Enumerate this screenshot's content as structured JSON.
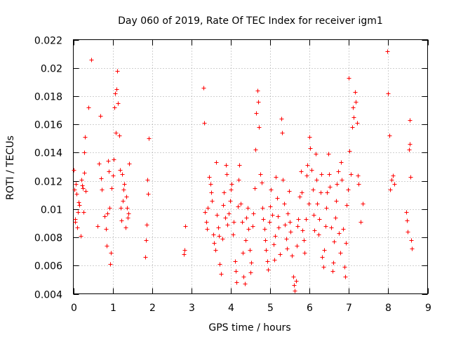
{
  "chart_data": {
    "type": "scatter",
    "title": "Day 060 of 2019, Rate Of TEC Index for receiver igm1",
    "xlabel": "GPS time / hours",
    "ylabel": "ROTI / TECUs",
    "xlim": [
      0,
      9
    ],
    "ylim": [
      0.004,
      0.022
    ],
    "x_ticks": [
      0,
      1,
      2,
      3,
      4,
      5,
      6,
      7,
      8,
      9
    ],
    "x_tick_labels": [
      "0",
      "1",
      "2",
      "3",
      "4",
      "5",
      "6",
      "7",
      "8",
      "9"
    ],
    "y_ticks": [
      0.004,
      0.006,
      0.008,
      0.01,
      0.012,
      0.014,
      0.016,
      0.018,
      0.02,
      0.022
    ],
    "y_tick_labels": [
      "0.004",
      "0.006",
      "0.008",
      "0.01",
      "0.012",
      "0.014",
      "0.016",
      "0.018",
      "0.02",
      "0.022"
    ],
    "grid": true,
    "marker": "+",
    "marker_color": "#ff0000",
    "series": [
      {
        "name": "ROTI",
        "points": [
          [
            0.0,
            0.0128
          ],
          [
            0.02,
            0.0114
          ],
          [
            0.04,
            0.0093
          ],
          [
            0.05,
            0.0091
          ],
          [
            0.06,
            0.0118
          ],
          [
            0.08,
            0.0111
          ],
          [
            0.1,
            0.0087
          ],
          [
            0.12,
            0.0098
          ],
          [
            0.14,
            0.0105
          ],
          [
            0.16,
            0.0103
          ],
          [
            0.18,
            0.0081
          ],
          [
            0.2,
            0.0121
          ],
          [
            0.22,
            0.0117
          ],
          [
            0.24,
            0.0115
          ],
          [
            0.26,
            0.0098
          ],
          [
            0.27,
            0.0126
          ],
          [
            0.28,
            0.014
          ],
          [
            0.3,
            0.0151
          ],
          [
            0.32,
            0.0113
          ],
          [
            0.38,
            0.0172
          ],
          [
            0.45,
            0.0206
          ],
          [
            0.62,
            0.0088
          ],
          [
            0.65,
            0.0132
          ],
          [
            0.68,
            0.0166
          ],
          [
            0.7,
            0.0122
          ],
          [
            0.72,
            0.0114
          ],
          [
            0.8,
            0.0095
          ],
          [
            0.82,
            0.0086
          ],
          [
            0.84,
            0.0074
          ],
          [
            0.86,
            0.0097
          ],
          [
            0.88,
            0.0134
          ],
          [
            0.9,
            0.0127
          ],
          [
            0.92,
            0.0101
          ],
          [
            0.94,
            0.0061
          ],
          [
            0.96,
            0.0069
          ],
          [
            0.98,
            0.0115
          ],
          [
            1.0,
            0.0124
          ],
          [
            1.02,
            0.0135
          ],
          [
            1.04,
            0.0172
          ],
          [
            1.06,
            0.0182
          ],
          [
            1.08,
            0.0154
          ],
          [
            1.1,
            0.0185
          ],
          [
            1.12,
            0.0198
          ],
          [
            1.14,
            0.0175
          ],
          [
            1.16,
            0.0152
          ],
          [
            1.18,
            0.0128
          ],
          [
            1.2,
            0.0101
          ],
          [
            1.22,
            0.0092
          ],
          [
            1.24,
            0.0125
          ],
          [
            1.26,
            0.0106
          ],
          [
            1.28,
            0.0114
          ],
          [
            1.3,
            0.0118
          ],
          [
            1.32,
            0.0087
          ],
          [
            1.34,
            0.0109
          ],
          [
            1.36,
            0.0101
          ],
          [
            1.38,
            0.0094
          ],
          [
            1.4,
            0.0097
          ],
          [
            1.42,
            0.0132
          ],
          [
            1.82,
            0.0066
          ],
          [
            1.84,
            0.0078
          ],
          [
            1.86,
            0.0089
          ],
          [
            1.88,
            0.0121
          ],
          [
            1.9,
            0.0111
          ],
          [
            1.92,
            0.015
          ],
          [
            2.8,
            0.0068
          ],
          [
            2.82,
            0.0071
          ],
          [
            2.85,
            0.0088
          ],
          [
            3.3,
            0.0186
          ],
          [
            3.32,
            0.0161
          ],
          [
            3.35,
            0.0098
          ],
          [
            3.38,
            0.0091
          ],
          [
            3.4,
            0.0086
          ],
          [
            3.42,
            0.0101
          ],
          [
            3.45,
            0.0123
          ],
          [
            3.48,
            0.0118
          ],
          [
            3.5,
            0.0112
          ],
          [
            3.52,
            0.0106
          ],
          [
            3.55,
            0.0082
          ],
          [
            3.58,
            0.0076
          ],
          [
            3.6,
            0.0071
          ],
          [
            3.62,
            0.0133
          ],
          [
            3.65,
            0.0096
          ],
          [
            3.68,
            0.0087
          ],
          [
            3.7,
            0.0081
          ],
          [
            3.72,
            0.0061
          ],
          [
            3.75,
            0.0054
          ],
          [
            3.78,
            0.0079
          ],
          [
            3.8,
            0.0103
          ],
          [
            3.82,
            0.0112
          ],
          [
            3.85,
            0.0094
          ],
          [
            3.88,
            0.0131
          ],
          [
            3.9,
            0.0125
          ],
          [
            3.92,
            0.0089
          ],
          [
            3.95,
            0.0097
          ],
          [
            3.98,
            0.0106
          ],
          [
            4.0,
            0.0114
          ],
          [
            4.02,
            0.0118
          ],
          [
            4.05,
            0.0082
          ],
          [
            4.08,
            0.0091
          ],
          [
            4.1,
            0.0063
          ],
          [
            4.12,
            0.0056
          ],
          [
            4.15,
            0.0048
          ],
          [
            4.18,
            0.0102
          ],
          [
            4.2,
            0.0121
          ],
          [
            4.22,
            0.0131
          ],
          [
            4.25,
            0.0104
          ],
          [
            4.28,
            0.0091
          ],
          [
            4.3,
            0.0069
          ],
          [
            4.32,
            0.0052
          ],
          [
            4.35,
            0.0047
          ],
          [
            4.38,
            0.0078
          ],
          [
            4.4,
            0.0094
          ],
          [
            4.42,
            0.0101
          ],
          [
            4.45,
            0.0086
          ],
          [
            4.48,
            0.0071
          ],
          [
            4.5,
            0.0055
          ],
          [
            4.52,
            0.0062
          ],
          [
            4.55,
            0.0088
          ],
          [
            4.58,
            0.0097
          ],
          [
            4.6,
            0.0115
          ],
          [
            4.62,
            0.0142
          ],
          [
            4.65,
            0.0168
          ],
          [
            4.68,
            0.0184
          ],
          [
            4.7,
            0.0176
          ],
          [
            4.72,
            0.0158
          ],
          [
            4.75,
            0.0125
          ],
          [
            4.78,
            0.0119
          ],
          [
            4.8,
            0.0101
          ],
          [
            4.82,
            0.0093
          ],
          [
            4.85,
            0.0086
          ],
          [
            4.88,
            0.0078
          ],
          [
            4.9,
            0.0071
          ],
          [
            4.92,
            0.0063
          ],
          [
            4.95,
            0.0057
          ],
          [
            4.98,
            0.0091
          ],
          [
            5.0,
            0.0102
          ],
          [
            5.02,
            0.0114
          ],
          [
            5.05,
            0.0096
          ],
          [
            5.08,
            0.0075
          ],
          [
            5.1,
            0.0064
          ],
          [
            5.12,
            0.0081
          ],
          [
            5.15,
            0.0123
          ],
          [
            5.18,
            0.0108
          ],
          [
            5.2,
            0.0095
          ],
          [
            5.22,
            0.0087
          ],
          [
            5.25,
            0.0068
          ],
          [
            5.28,
            0.0164
          ],
          [
            5.3,
            0.0154
          ],
          [
            5.32,
            0.0121
          ],
          [
            5.35,
            0.0104
          ],
          [
            5.38,
            0.0089
          ],
          [
            5.4,
            0.0079
          ],
          [
            5.42,
            0.0072
          ],
          [
            5.45,
            0.0097
          ],
          [
            5.48,
            0.0113
          ],
          [
            5.5,
            0.0091
          ],
          [
            5.52,
            0.0084
          ],
          [
            5.55,
            0.0067
          ],
          [
            5.58,
            0.0052
          ],
          [
            5.6,
            0.0046
          ],
          [
            5.62,
            0.0042
          ],
          [
            5.65,
            0.0049
          ],
          [
            5.68,
            0.0074
          ],
          [
            5.7,
            0.0088
          ],
          [
            5.72,
            0.0093
          ],
          [
            5.75,
            0.0109
          ],
          [
            5.78,
            0.0127
          ],
          [
            5.8,
            0.0112
          ],
          [
            5.82,
            0.0085
          ],
          [
            5.85,
            0.0078
          ],
          [
            5.88,
            0.0069
          ],
          [
            5.9,
            0.0093
          ],
          [
            5.92,
            0.0124
          ],
          [
            5.95,
            0.0131
          ],
          [
            5.98,
            0.0104
          ],
          [
            6.0,
            0.0151
          ],
          [
            6.02,
            0.0143
          ],
          [
            6.05,
            0.0128
          ],
          [
            6.08,
            0.0114
          ],
          [
            6.1,
            0.0096
          ],
          [
            6.12,
            0.0085
          ],
          [
            6.15,
            0.0139
          ],
          [
            6.18,
            0.0121
          ],
          [
            6.2,
            0.0104
          ],
          [
            6.22,
            0.0082
          ],
          [
            6.25,
            0.0093
          ],
          [
            6.28,
            0.0112
          ],
          [
            6.3,
            0.0125
          ],
          [
            6.32,
            0.0066
          ],
          [
            6.35,
            0.0059
          ],
          [
            6.38,
            0.0071
          ],
          [
            6.4,
            0.0088
          ],
          [
            6.42,
            0.0101
          ],
          [
            6.45,
            0.0112
          ],
          [
            6.48,
            0.0139
          ],
          [
            6.5,
            0.0125
          ],
          [
            6.52,
            0.0116
          ],
          [
            6.55,
            0.0087
          ],
          [
            6.58,
            0.0056
          ],
          [
            6.6,
            0.0062
          ],
          [
            6.62,
            0.0077
          ],
          [
            6.65,
            0.0094
          ],
          [
            6.68,
            0.0106
          ],
          [
            6.7,
            0.0118
          ],
          [
            6.72,
            0.0127
          ],
          [
            6.75,
            0.0083
          ],
          [
            6.78,
            0.0069
          ],
          [
            6.8,
            0.0133
          ],
          [
            6.82,
            0.0121
          ],
          [
            6.85,
            0.0086
          ],
          [
            6.88,
            0.0059
          ],
          [
            6.9,
            0.0052
          ],
          [
            6.92,
            0.0076
          ],
          [
            6.95,
            0.0103
          ],
          [
            6.98,
            0.0114
          ],
          [
            7.0,
            0.0193
          ],
          [
            7.02,
            0.0141
          ],
          [
            7.05,
            0.0125
          ],
          [
            7.08,
            0.0158
          ],
          [
            7.1,
            0.0172
          ],
          [
            7.12,
            0.0165
          ],
          [
            7.15,
            0.0183
          ],
          [
            7.18,
            0.0176
          ],
          [
            7.2,
            0.0161
          ],
          [
            7.22,
            0.0124
          ],
          [
            7.25,
            0.0118
          ],
          [
            7.3,
            0.0091
          ],
          [
            7.35,
            0.0104
          ],
          [
            7.98,
            0.0212
          ],
          [
            8.0,
            0.0182
          ],
          [
            8.02,
            0.0152
          ],
          [
            8.05,
            0.0114
          ],
          [
            8.08,
            0.0121
          ],
          [
            8.12,
            0.0124
          ],
          [
            8.15,
            0.0118
          ],
          [
            8.45,
            0.0098
          ],
          [
            8.47,
            0.0092
          ],
          [
            8.5,
            0.0084
          ],
          [
            8.52,
            0.0142
          ],
          [
            8.54,
            0.0163
          ],
          [
            8.55,
            0.0146
          ],
          [
            8.56,
            0.0123
          ],
          [
            8.58,
            0.0078
          ],
          [
            8.6,
            0.0072
          ]
        ]
      }
    ]
  }
}
